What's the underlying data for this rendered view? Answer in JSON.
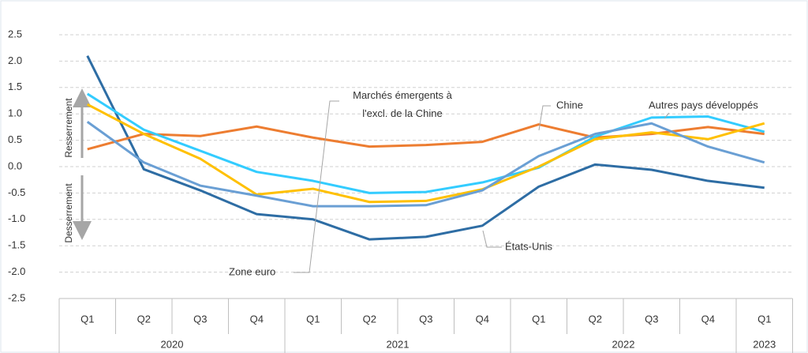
{
  "chart_data": {
    "type": "line",
    "categories": [
      "Q1",
      "Q2",
      "Q3",
      "Q4",
      "Q1",
      "Q2",
      "Q3",
      "Q4",
      "Q1",
      "Q2",
      "Q3",
      "Q4",
      "Q1"
    ],
    "category_groups": [
      {
        "label": "2020",
        "count": 4
      },
      {
        "label": "2021",
        "count": 4
      },
      {
        "label": "2022",
        "count": 4
      },
      {
        "label": "2023",
        "count": 1
      }
    ],
    "series": [
      {
        "name": "États-Unis",
        "color": "#2e6da4",
        "values": [
          2.1,
          -0.05,
          -0.45,
          -0.9,
          -1.0,
          -1.38,
          -1.33,
          -1.12,
          -0.38,
          0.04,
          -0.06,
          -0.27,
          -0.4
        ]
      },
      {
        "name": "Chine",
        "color": "#ed7d31",
        "values": [
          0.33,
          0.62,
          0.58,
          0.76,
          0.55,
          0.38,
          0.41,
          0.47,
          0.8,
          0.55,
          0.62,
          0.75,
          0.62
        ]
      },
      {
        "name": "Autres pays développés",
        "color": "#33ccff",
        "values": [
          1.38,
          0.7,
          0.3,
          -0.1,
          -0.27,
          -0.5,
          -0.48,
          -0.3,
          -0.02,
          0.57,
          0.93,
          0.95,
          0.66
        ]
      },
      {
        "name": "Marchés émergents à l'excl. de la Chine",
        "color": "#ffc000",
        "values": [
          1.18,
          0.62,
          0.15,
          -0.53,
          -0.42,
          -0.67,
          -0.65,
          -0.43,
          0.0,
          0.52,
          0.65,
          0.52,
          0.82
        ]
      },
      {
        "name": "Zone euro",
        "color": "#6a9fd4",
        "values": [
          0.85,
          0.08,
          -0.36,
          -0.55,
          -0.75,
          -0.75,
          -0.73,
          -0.45,
          0.2,
          0.62,
          0.82,
          0.38,
          0.08
        ]
      }
    ],
    "ylim": [
      -2.5,
      2.5
    ],
    "yticks": [
      2.5,
      {
        "value": 2,
        "label": "2.0"
      },
      1.5,
      {
        "value": 1,
        "label": "1.0"
      },
      0.5,
      {
        "value": 0,
        "label": "0.0"
      },
      -0.5,
      {
        "value": -1,
        "label": "-1.0"
      },
      -1.5,
      {
        "value": -2,
        "label": "-2.0"
      },
      -2.5
    ],
    "grid": true,
    "side_labels": {
      "up": "Resserrement",
      "down": "Desserrement"
    }
  }
}
